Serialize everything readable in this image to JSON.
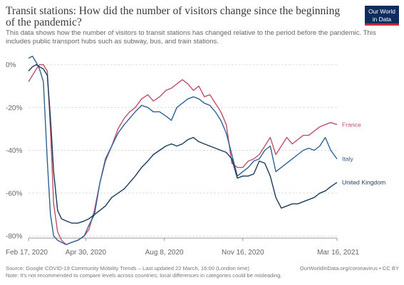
{
  "header": {
    "title": "Transit stations: How did the number of visitors change since the beginning of the pandemic?",
    "subtitle": "This data shows how the number of visitors to transit stations has changed relative to the period before the pandemic. This includes public transport hubs such as subway, bus, and train stations.",
    "logo_line1": "Our World",
    "logo_line2": "in Data"
  },
  "footer": {
    "source": "Source: Google COVID-19 Community Mobility Trends – Last updated 22 March, 16:00 (London time)",
    "note": "Note: It's not recommended to compare levels across countries; local differences in categories could be misleading.",
    "credit": "OurWorldInData.org/coronavirus • CC BY"
  },
  "chart_data": {
    "type": "line",
    "title": "Transit stations: How did the number of visitors change since the beginning of the pandemic?",
    "xlabel": "",
    "ylabel": "",
    "ylim": [
      -80,
      0
    ],
    "y_ticks": [
      "0%",
      "-20%",
      "-40%",
      "-60%",
      "-80%"
    ],
    "y_tick_values": [
      0,
      -20,
      -40,
      -60,
      -80
    ],
    "x_ticks": [
      "Feb 17, 2020",
      "Apr 30, 2020",
      "Aug 8, 2020",
      "Nov 16, 2020",
      "Mar 16, 2021"
    ],
    "x_tick_values": [
      "2020-02-17",
      "2020-04-30",
      "2020-08-08",
      "2020-11-16",
      "2021-03-16"
    ],
    "grid": "horizontal dashed",
    "legend": "labels at line ends (right)",
    "series": [
      {
        "name": "France",
        "color": "#c15065",
        "points": [
          [
            "2020-02-17",
            -8
          ],
          [
            "2020-02-22",
            -5
          ],
          [
            "2020-02-27",
            -2
          ],
          [
            "2020-03-02",
            0
          ],
          [
            "2020-03-07",
            0
          ],
          [
            "2020-03-12",
            -3
          ],
          [
            "2020-03-16",
            -30
          ],
          [
            "2020-03-20",
            -65
          ],
          [
            "2020-03-25",
            -78
          ],
          [
            "2020-03-30",
            -82
          ],
          [
            "2020-04-05",
            -84
          ],
          [
            "2020-04-12",
            -83
          ],
          [
            "2020-04-20",
            -82
          ],
          [
            "2020-04-28",
            -80
          ],
          [
            "2020-05-04",
            -77
          ],
          [
            "2020-05-11",
            -68
          ],
          [
            "2020-05-18",
            -55
          ],
          [
            "2020-05-25",
            -45
          ],
          [
            "2020-06-02",
            -38
          ],
          [
            "2020-06-10",
            -30
          ],
          [
            "2020-06-18",
            -25
          ],
          [
            "2020-06-25",
            -22
          ],
          [
            "2020-07-02",
            -20
          ],
          [
            "2020-07-10",
            -16
          ],
          [
            "2020-07-18",
            -14
          ],
          [
            "2020-07-25",
            -17
          ],
          [
            "2020-08-02",
            -15
          ],
          [
            "2020-08-10",
            -12
          ],
          [
            "2020-08-17",
            -11
          ],
          [
            "2020-08-24",
            -9
          ],
          [
            "2020-08-31",
            -7
          ],
          [
            "2020-09-07",
            -9
          ],
          [
            "2020-09-14",
            -12
          ],
          [
            "2020-09-21",
            -10
          ],
          [
            "2020-09-28",
            -15
          ],
          [
            "2020-10-05",
            -14
          ],
          [
            "2020-10-12",
            -18
          ],
          [
            "2020-10-19",
            -22
          ],
          [
            "2020-10-26",
            -28
          ],
          [
            "2020-11-02",
            -46
          ],
          [
            "2020-11-09",
            -48
          ],
          [
            "2020-11-16",
            -48
          ],
          [
            "2020-11-23",
            -45
          ],
          [
            "2020-11-30",
            -44
          ],
          [
            "2020-12-07",
            -42
          ],
          [
            "2020-12-14",
            -38
          ],
          [
            "2020-12-21",
            -34
          ],
          [
            "2020-12-28",
            -42
          ],
          [
            "2021-01-04",
            -38
          ],
          [
            "2021-01-11",
            -34
          ],
          [
            "2021-01-18",
            -37
          ],
          [
            "2021-01-25",
            -35
          ],
          [
            "2021-02-01",
            -33
          ],
          [
            "2021-02-08",
            -33
          ],
          [
            "2021-02-15",
            -31
          ],
          [
            "2021-02-22",
            -29
          ],
          [
            "2021-03-01",
            -28
          ],
          [
            "2021-03-08",
            -27
          ],
          [
            "2021-03-16",
            -28
          ]
        ]
      },
      {
        "name": "Italy",
        "color": "#2e6196",
        "points": [
          [
            "2020-02-17",
            3
          ],
          [
            "2020-02-22",
            4
          ],
          [
            "2020-02-27",
            1
          ],
          [
            "2020-03-02",
            -2
          ],
          [
            "2020-03-07",
            -8
          ],
          [
            "2020-03-12",
            -45
          ],
          [
            "2020-03-16",
            -70
          ],
          [
            "2020-03-20",
            -80
          ],
          [
            "2020-03-25",
            -82
          ],
          [
            "2020-03-30",
            -83
          ],
          [
            "2020-04-05",
            -84
          ],
          [
            "2020-04-12",
            -83
          ],
          [
            "2020-04-20",
            -82
          ],
          [
            "2020-04-28",
            -80
          ],
          [
            "2020-05-04",
            -75
          ],
          [
            "2020-05-11",
            -70
          ],
          [
            "2020-05-18",
            -55
          ],
          [
            "2020-05-25",
            -44
          ],
          [
            "2020-06-02",
            -38
          ],
          [
            "2020-06-10",
            -32
          ],
          [
            "2020-06-18",
            -28
          ],
          [
            "2020-06-25",
            -25
          ],
          [
            "2020-07-02",
            -22
          ],
          [
            "2020-07-10",
            -19
          ],
          [
            "2020-07-18",
            -20
          ],
          [
            "2020-07-25",
            -22
          ],
          [
            "2020-08-02",
            -22
          ],
          [
            "2020-08-10",
            -24
          ],
          [
            "2020-08-17",
            -26
          ],
          [
            "2020-08-24",
            -20
          ],
          [
            "2020-08-31",
            -18
          ],
          [
            "2020-09-07",
            -16
          ],
          [
            "2020-09-14",
            -15
          ],
          [
            "2020-09-21",
            -16
          ],
          [
            "2020-09-28",
            -18
          ],
          [
            "2020-10-05",
            -19
          ],
          [
            "2020-10-12",
            -22
          ],
          [
            "2020-10-19",
            -26
          ],
          [
            "2020-10-26",
            -32
          ],
          [
            "2020-11-02",
            -42
          ],
          [
            "2020-11-09",
            -52
          ],
          [
            "2020-11-16",
            -50
          ],
          [
            "2020-11-23",
            -48
          ],
          [
            "2020-11-30",
            -45
          ],
          [
            "2020-12-07",
            -44
          ],
          [
            "2020-12-14",
            -40
          ],
          [
            "2020-12-21",
            -38
          ],
          [
            "2020-12-28",
            -50
          ],
          [
            "2021-01-04",
            -48
          ],
          [
            "2021-01-11",
            -46
          ],
          [
            "2021-01-18",
            -44
          ],
          [
            "2021-01-25",
            -42
          ],
          [
            "2021-02-01",
            -40
          ],
          [
            "2021-02-08",
            -39
          ],
          [
            "2021-02-15",
            -40
          ],
          [
            "2021-02-22",
            -38
          ],
          [
            "2021-03-01",
            -34
          ],
          [
            "2021-03-08",
            -40
          ],
          [
            "2021-03-16",
            -44
          ]
        ]
      },
      {
        "name": "United Kingdom",
        "color": "#1a3a5c",
        "points": [
          [
            "2020-02-17",
            -3
          ],
          [
            "2020-02-22",
            -1
          ],
          [
            "2020-02-27",
            0
          ],
          [
            "2020-03-02",
            -1
          ],
          [
            "2020-03-07",
            -2
          ],
          [
            "2020-03-12",
            -5
          ],
          [
            "2020-03-16",
            -25
          ],
          [
            "2020-03-20",
            -50
          ],
          [
            "2020-03-25",
            -68
          ],
          [
            "2020-03-30",
            -72
          ],
          [
            "2020-04-05",
            -73
          ],
          [
            "2020-04-12",
            -74
          ],
          [
            "2020-04-20",
            -74
          ],
          [
            "2020-04-28",
            -73
          ],
          [
            "2020-05-04",
            -72
          ],
          [
            "2020-05-11",
            -70
          ],
          [
            "2020-05-18",
            -68
          ],
          [
            "2020-05-25",
            -66
          ],
          [
            "2020-06-02",
            -62
          ],
          [
            "2020-06-10",
            -60
          ],
          [
            "2020-06-18",
            -58
          ],
          [
            "2020-06-25",
            -55
          ],
          [
            "2020-07-02",
            -52
          ],
          [
            "2020-07-10",
            -48
          ],
          [
            "2020-07-18",
            -45
          ],
          [
            "2020-07-25",
            -42
          ],
          [
            "2020-08-02",
            -40
          ],
          [
            "2020-08-10",
            -38
          ],
          [
            "2020-08-17",
            -37
          ],
          [
            "2020-08-24",
            -38
          ],
          [
            "2020-08-31",
            -37
          ],
          [
            "2020-09-07",
            -35
          ],
          [
            "2020-09-14",
            -34
          ],
          [
            "2020-09-21",
            -36
          ],
          [
            "2020-09-28",
            -37
          ],
          [
            "2020-10-05",
            -38
          ],
          [
            "2020-10-12",
            -39
          ],
          [
            "2020-10-19",
            -40
          ],
          [
            "2020-10-26",
            -41
          ],
          [
            "2020-11-02",
            -44
          ],
          [
            "2020-11-09",
            -53
          ],
          [
            "2020-11-16",
            -52
          ],
          [
            "2020-11-23",
            -52
          ],
          [
            "2020-11-30",
            -51
          ],
          [
            "2020-12-07",
            -45
          ],
          [
            "2020-12-14",
            -46
          ],
          [
            "2020-12-21",
            -52
          ],
          [
            "2020-12-28",
            -62
          ],
          [
            "2021-01-04",
            -67
          ],
          [
            "2021-01-11",
            -66
          ],
          [
            "2021-01-18",
            -65
          ],
          [
            "2021-01-25",
            -65
          ],
          [
            "2021-02-01",
            -64
          ],
          [
            "2021-02-08",
            -63
          ],
          [
            "2021-02-15",
            -62
          ],
          [
            "2021-02-22",
            -60
          ],
          [
            "2021-03-01",
            -59
          ],
          [
            "2021-03-08",
            -57
          ],
          [
            "2021-03-16",
            -55
          ]
        ]
      }
    ]
  }
}
